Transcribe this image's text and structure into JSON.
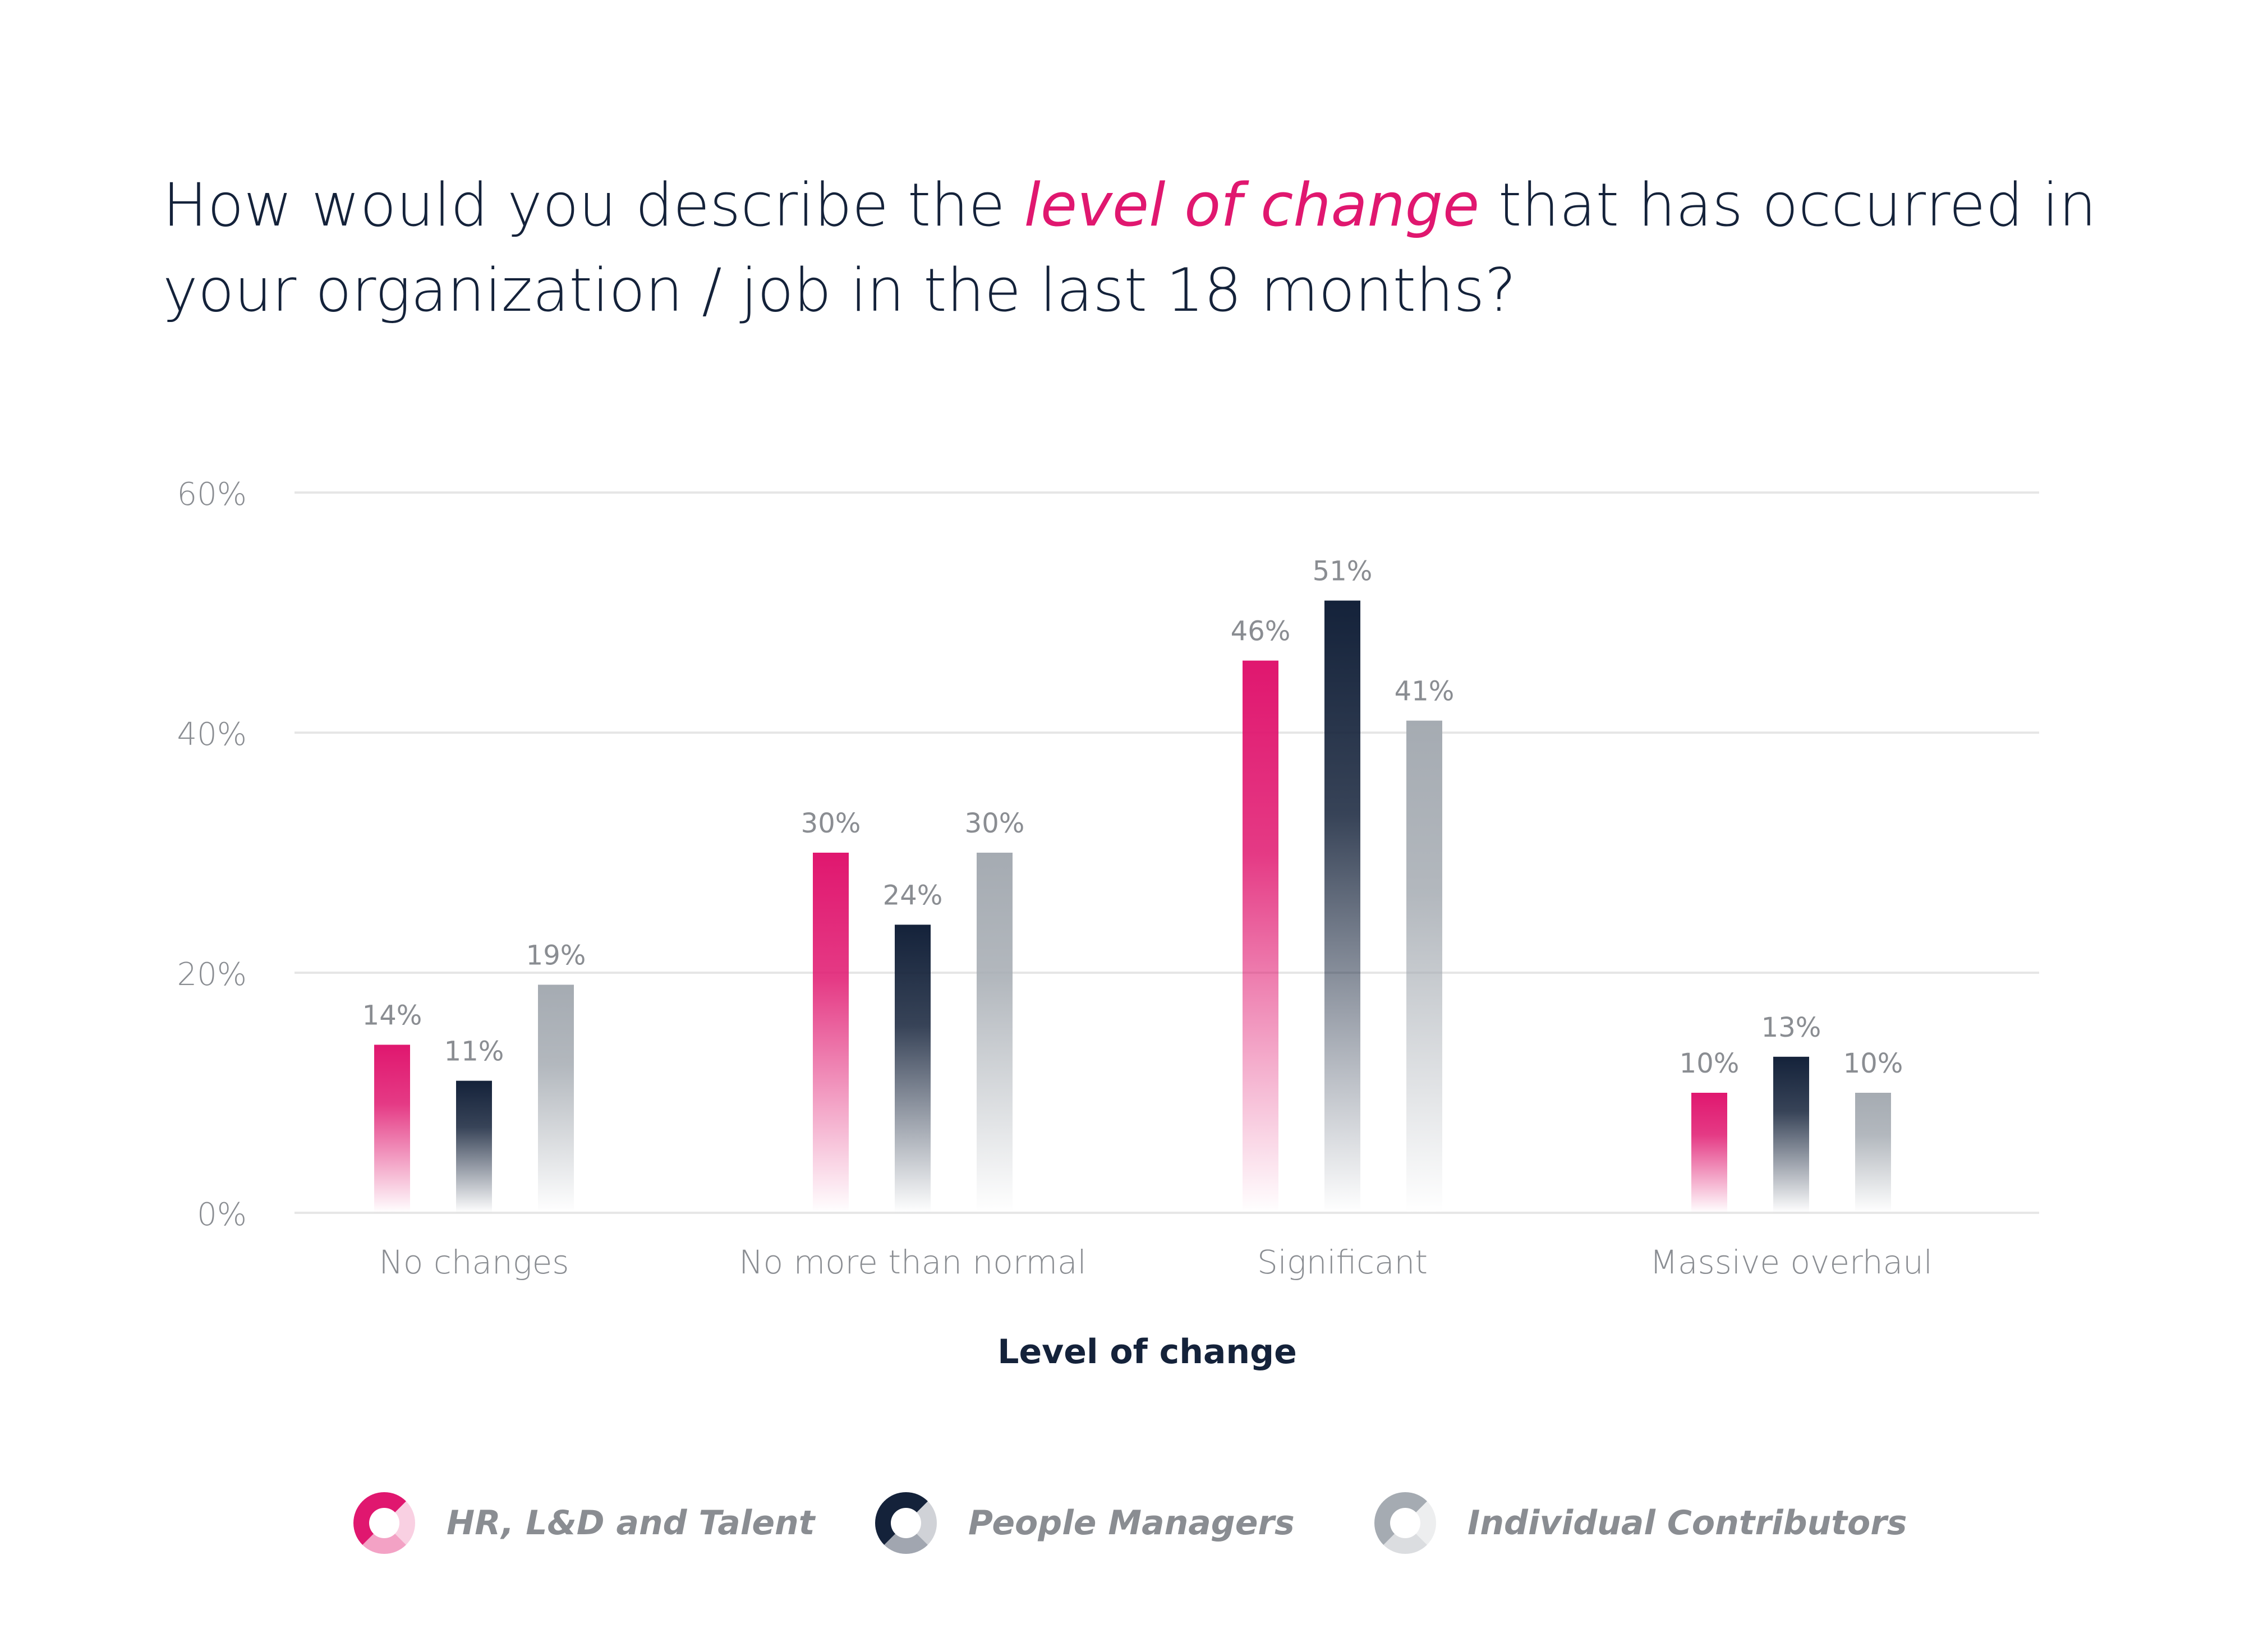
{
  "title": {
    "part1": "How would you describe the ",
    "highlight": "level of change",
    "part2": " that has occurred in your organization / job in the last 18 months?"
  },
  "chart_data": {
    "type": "bar",
    "categories": [
      "No changes",
      "No more than normal",
      "Significant",
      "Massive overhaul"
    ],
    "series": [
      {
        "name": "HR, L&D and Talent",
        "values": [
          14,
          30,
          46,
          10
        ],
        "labels": [
          "14%",
          "30%",
          "46%",
          "10%"
        ],
        "color": "#e0176f"
      },
      {
        "name": "People Managers",
        "values": [
          11,
          24,
          51,
          13
        ],
        "labels": [
          "11%",
          "24%",
          "51%",
          "13%"
        ],
        "color": "#14223a"
      },
      {
        "name": "Individual Contributors",
        "values": [
          19,
          30,
          41,
          10
        ],
        "labels": [
          "19%",
          "30%",
          "41%",
          "10%"
        ],
        "color": "#a5abb2"
      }
    ],
    "ylim": [
      0,
      60
    ],
    "yticks": [
      0,
      20,
      40,
      60
    ],
    "ytick_labels": [
      "0%",
      "20%",
      "40%",
      "60%"
    ],
    "xlabel": "Level of change",
    "ylabel": "",
    "grid": true,
    "legend_position": "bottom"
  },
  "colors": {
    "text_dark": "#14223a",
    "axis_text": "#8a8d92",
    "grid": "#e6e6e6"
  }
}
